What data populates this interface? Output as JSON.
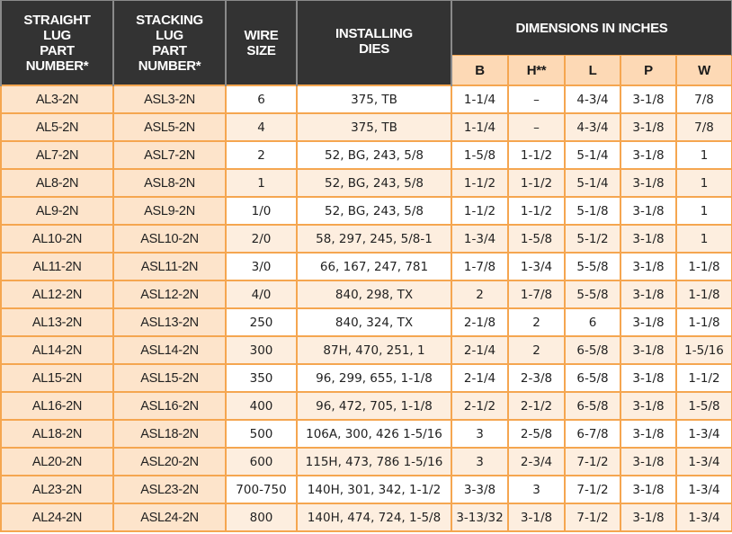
{
  "header": {
    "straight_lug": [
      "STRAIGHT",
      "LUG",
      "PART",
      "NUMBER*"
    ],
    "stacking_lug": [
      "STACKING",
      "LUG",
      "PART",
      "NUMBER*"
    ],
    "wire_size": [
      "WIRE",
      "SIZE"
    ],
    "installing_dies": [
      "INSTALLING",
      "DIES"
    ],
    "dimensions": "DIMENSIONS IN INCHES",
    "dim_cols": [
      "B",
      "H**",
      "L",
      "P",
      "W"
    ]
  },
  "colors": {
    "header_bg": "#333333",
    "subheader_bg": "#fdd9b5",
    "part_col_bg": "#fde4cb",
    "row_alt_bg": "#fdeedf",
    "grid": "#f5a650"
  },
  "rows": [
    {
      "straight": "AL3-2N",
      "stacking": "ASL3-2N",
      "wire": "6",
      "dies": "375, TB",
      "B": "1-1/4",
      "H": "–",
      "L": "4-3/4",
      "P": "3-1/8",
      "W": "7/8"
    },
    {
      "straight": "AL5-2N",
      "stacking": "ASL5-2N",
      "wire": "4",
      "dies": "375, TB",
      "B": "1-1/4",
      "H": "–",
      "L": "4-3/4",
      "P": "3-1/8",
      "W": "7/8"
    },
    {
      "straight": "AL7-2N",
      "stacking": "ASL7-2N",
      "wire": "2",
      "dies": "52, BG, 243, 5/8",
      "B": "1-5/8",
      "H": "1-1/2",
      "L": "5-1/4",
      "P": "3-1/8",
      "W": "1"
    },
    {
      "straight": "AL8-2N",
      "stacking": "ASL8-2N",
      "wire": "1",
      "dies": "52, BG, 243, 5/8",
      "B": "1-1/2",
      "H": "1-1/2",
      "L": "5-1/4",
      "P": "3-1/8",
      "W": "1"
    },
    {
      "straight": "AL9-2N",
      "stacking": "ASL9-2N",
      "wire": "1/0",
      "dies": "52, BG, 243, 5/8",
      "B": "1-1/2",
      "H": "1-1/2",
      "L": "5-1/8",
      "P": "3-1/8",
      "W": "1"
    },
    {
      "straight": "AL10-2N",
      "stacking": "ASL10-2N",
      "wire": "2/0",
      "dies": "58, 297, 245, 5/8-1",
      "B": "1-3/4",
      "H": "1-5/8",
      "L": "5-1/2",
      "P": "3-1/8",
      "W": "1"
    },
    {
      "straight": "AL11-2N",
      "stacking": "ASL11-2N",
      "wire": "3/0",
      "dies": "66, 167, 247, 781",
      "B": "1-7/8",
      "H": "1-3/4",
      "L": "5-5/8",
      "P": "3-1/8",
      "W": "1-1/8"
    },
    {
      "straight": "AL12-2N",
      "stacking": "ASL12-2N",
      "wire": "4/0",
      "dies": "840, 298, TX",
      "B": "2",
      "H": "1-7/8",
      "L": "5-5/8",
      "P": "3-1/8",
      "W": "1-1/8"
    },
    {
      "straight": "AL13-2N",
      "stacking": "ASL13-2N",
      "wire": "250",
      "dies": "840, 324, TX",
      "B": "2-1/8",
      "H": "2",
      "L": "6",
      "P": "3-1/8",
      "W": "1-1/8"
    },
    {
      "straight": "AL14-2N",
      "stacking": "ASL14-2N",
      "wire": "300",
      "dies": "87H, 470, 251, 1",
      "B": "2-1/4",
      "H": "2",
      "L": "6-5/8",
      "P": "3-1/8",
      "W": "1-5/16"
    },
    {
      "straight": "AL15-2N",
      "stacking": "ASL15-2N",
      "wire": "350",
      "dies": "96, 299, 655, 1-1/8",
      "B": "2-1/4",
      "H": "2-3/8",
      "L": "6-5/8",
      "P": "3-1/8",
      "W": "1-1/2"
    },
    {
      "straight": "AL16-2N",
      "stacking": "ASL16-2N",
      "wire": "400",
      "dies": "96, 472, 705, 1-1/8",
      "B": "2-1/2",
      "H": "2-1/2",
      "L": "6-5/8",
      "P": "3-1/8",
      "W": "1-5/8"
    },
    {
      "straight": "AL18-2N",
      "stacking": "ASL18-2N",
      "wire": "500",
      "dies": "106A, 300, 426 1-5/16",
      "B": "3",
      "H": "2-5/8",
      "L": "6-7/8",
      "P": "3-1/8",
      "W": "1-3/4"
    },
    {
      "straight": "AL20-2N",
      "stacking": "ASL20-2N",
      "wire": "600",
      "dies": "115H, 473, 786 1-5/16",
      "B": "3",
      "H": "2-3/4",
      "L": "7-1/2",
      "P": "3-1/8",
      "W": "1-3/4"
    },
    {
      "straight": "AL23-2N",
      "stacking": "ASL23-2N",
      "wire": "700-750",
      "dies": "140H, 301, 342, 1-1/2",
      "B": "3-3/8",
      "H": "3",
      "L": "7-1/2",
      "P": "3-1/8",
      "W": "1-3/4"
    },
    {
      "straight": "AL24-2N",
      "stacking": "ASL24-2N",
      "wire": "800",
      "dies": "140H, 474, 724, 1-5/8",
      "B": "3-13/32",
      "H": "3-1/8",
      "L": "7-1/2",
      "P": "3-1/8",
      "W": "1-3/4"
    }
  ]
}
